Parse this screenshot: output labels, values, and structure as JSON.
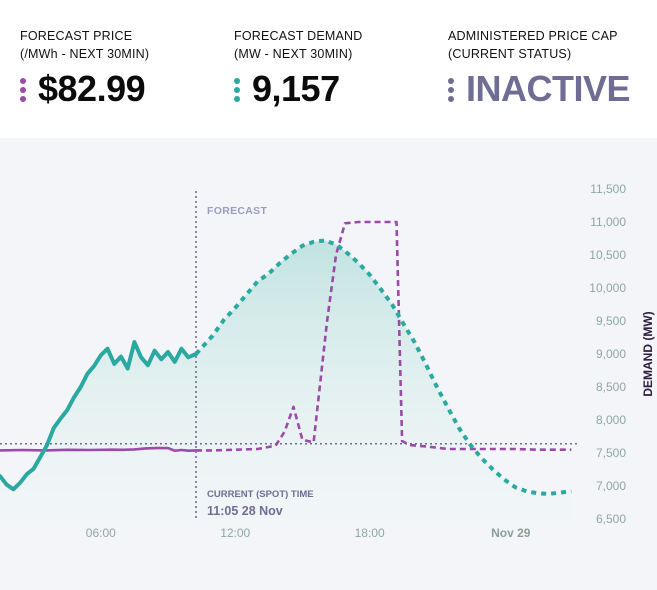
{
  "stats": [
    {
      "label_line1": "FORECAST PRICE",
      "label_line2": "(/MWh - NEXT 30MIN)",
      "value": "$82.99",
      "color": "#9b4aa8",
      "value_color": "#0b0b0b"
    },
    {
      "label_line1": "FORECAST DEMAND",
      "label_line2": "(MW - NEXT 30MIN)",
      "value": "9,157",
      "color": "#2ba9a1",
      "value_color": "#0b0b0b"
    },
    {
      "label_line1": "ADMINISTERED PRICE CAP",
      "label_line2": "(CURRENT STATUS)",
      "value": "INACTIVE",
      "color": "#6f6d94",
      "value_color": "#6f6d94"
    }
  ],
  "chart_data": {
    "type": "line",
    "ylabel": "DEMAND (MW)",
    "ylim": [
      6500,
      11500
    ],
    "y_ticks": [
      "6,500",
      "7,000",
      "7,500",
      "8,000",
      "8,500",
      "9,000",
      "9,500",
      "10,000",
      "10,500",
      "11,000",
      "11,500"
    ],
    "y_tick_values": [
      6500,
      7000,
      7500,
      8000,
      8500,
      9000,
      9500,
      10000,
      10500,
      11000,
      11500
    ],
    "xlim": [
      0,
      25.8
    ],
    "x_ticks": [
      "06:00",
      "12:00",
      "18:00",
      "Nov 29"
    ],
    "x_tick_values": [
      4.5,
      10.5,
      16.5,
      22.8
    ],
    "forecast_label": "FORECAST",
    "current_time_label": "CURRENT (SPOT) TIME",
    "current_time_value": "11:05 28 Nov",
    "current_time_x": 8.75,
    "reference_line_y": 7640,
    "series": [
      {
        "name": "Demand (actual)",
        "style": "solid",
        "color": "#2ba9a1",
        "x": [
          0,
          0.3,
          0.6,
          0.9,
          1.2,
          1.5,
          1.8,
          2.1,
          2.4,
          2.7,
          3.0,
          3.3,
          3.6,
          3.9,
          4.2,
          4.5,
          4.8,
          5.1,
          5.4,
          5.7,
          6.0,
          6.3,
          6.6,
          6.9,
          7.2,
          7.5,
          7.8,
          8.1,
          8.4,
          8.75
        ],
        "y": [
          7150,
          7020,
          6950,
          7050,
          7180,
          7260,
          7440,
          7620,
          7880,
          8020,
          8150,
          8340,
          8500,
          8700,
          8820,
          8980,
          9080,
          8850,
          8960,
          8780,
          9180,
          8950,
          8830,
          9050,
          8920,
          9030,
          8880,
          9080,
          8950,
          9000
        ]
      },
      {
        "name": "Demand (forecast)",
        "style": "dotted",
        "color": "#2ba9a1",
        "x": [
          8.75,
          9.5,
          10.0,
          10.5,
          11.0,
          11.5,
          12.0,
          12.5,
          13.0,
          13.5,
          14.0,
          14.5,
          15.0,
          15.5,
          16.0,
          16.5,
          17.0,
          17.5,
          18.0,
          18.5,
          19.0,
          19.5,
          20.0,
          20.5,
          21.0,
          21.5,
          22.0,
          22.5,
          23.0,
          23.5,
          24.0,
          24.5,
          25.0,
          25.5
        ],
        "y": [
          9000,
          9280,
          9520,
          9700,
          9900,
          10100,
          10220,
          10380,
          10520,
          10640,
          10700,
          10720,
          10660,
          10530,
          10380,
          10200,
          9980,
          9750,
          9460,
          9180,
          8850,
          8500,
          8180,
          7870,
          7620,
          7420,
          7250,
          7100,
          6980,
          6920,
          6890,
          6880,
          6900,
          6920
        ]
      },
      {
        "name": "Price (actual)",
        "style": "solid",
        "color": "#9b4aa8",
        "x": [
          0,
          1.0,
          2.0,
          3.0,
          4.0,
          5.0,
          5.5,
          6.0,
          6.5,
          7.0,
          7.5,
          7.8,
          8.1,
          8.4,
          8.75
        ],
        "y": [
          7540,
          7545,
          7540,
          7548,
          7545,
          7550,
          7548,
          7555,
          7570,
          7575,
          7575,
          7535,
          7545,
          7535,
          7540
        ]
      },
      {
        "name": "Price (forecast)",
        "style": "dashed",
        "color": "#9b4aa8",
        "x": [
          8.75,
          9.5,
          10.5,
          11.5,
          12.3,
          12.7,
          13.1,
          13.5,
          14.0,
          14.6,
          15.0,
          15.4,
          16.0,
          16.6,
          17.2,
          17.7,
          17.95,
          18.3,
          19.0,
          20.0,
          21.0,
          22.0,
          23.0,
          24.0,
          25.5
        ],
        "y": [
          7540,
          7540,
          7550,
          7560,
          7610,
          7820,
          8200,
          7700,
          7660,
          9500,
          10500,
          10980,
          11000,
          11000,
          11000,
          11000,
          7680,
          7620,
          7600,
          7560,
          7560,
          7560,
          7560,
          7550,
          7550
        ]
      }
    ]
  }
}
